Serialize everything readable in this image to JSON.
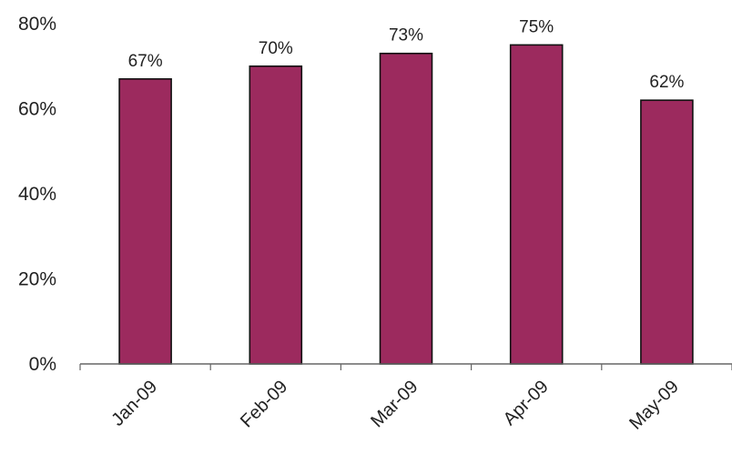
{
  "chart_data": {
    "type": "bar",
    "categories": [
      "Jan-09",
      "Feb-09",
      "Mar-09",
      "Apr-09",
      "May-09"
    ],
    "values": [
      67,
      70,
      73,
      75,
      62
    ],
    "data_labels": [
      "67%",
      "70%",
      "73%",
      "75%",
      "62%"
    ],
    "y_ticks": [
      {
        "value": 0,
        "label": "0%"
      },
      {
        "value": 20,
        "label": "20%"
      },
      {
        "value": 40,
        "label": "40%"
      },
      {
        "value": 60,
        "label": "60%"
      },
      {
        "value": 80,
        "label": "80%"
      }
    ],
    "ylim": [
      0,
      80
    ],
    "title": "",
    "xlabel": "",
    "ylabel": "",
    "grid": false,
    "legend": "none",
    "bar_color": "#9c2a5e",
    "bar_outline_color": "#111111",
    "axis_color": "#666666"
  }
}
